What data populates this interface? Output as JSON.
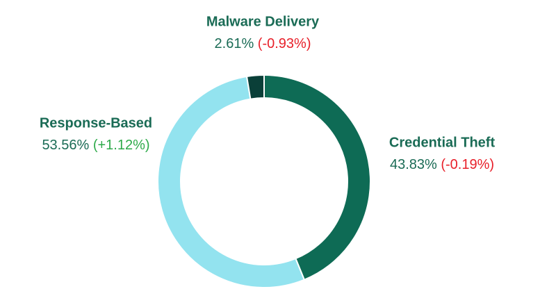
{
  "chart_data": {
    "type": "donut",
    "categories": [
      "Credential Theft",
      "Response-Based",
      "Malware Delivery"
    ],
    "values": [
      43.83,
      53.56,
      2.61
    ],
    "value_labels": [
      "43.83%",
      "53.56%",
      "2.61%"
    ],
    "changes": [
      {
        "value": -0.19,
        "label": "(-0.19%)"
      },
      {
        "value": 1.12,
        "label": "(+1.12%)"
      },
      {
        "value": -0.93,
        "label": "(-0.93%)"
      }
    ],
    "colors": [
      "#0e6b55",
      "#93e3ef",
      "#0a3f38"
    ],
    "label_color": "#1a6b55",
    "positive_color": "#2eaa4a",
    "negative_color": "#e8202a"
  }
}
